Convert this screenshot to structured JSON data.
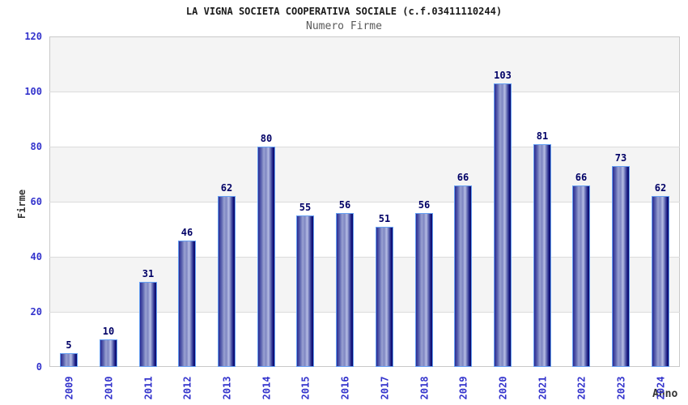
{
  "header": {
    "title": "LA VIGNA SOCIETA COOPERATIVA SOCIALE (c.f.03411110244)",
    "subtitle": "Numero Firme"
  },
  "chart_data": {
    "type": "bar",
    "title": "LA VIGNA SOCIETA COOPERATIVA SOCIALE (c.f.03411110244)",
    "subtitle": "Numero Firme",
    "xlabel": "Anno",
    "ylabel": "Firme",
    "categories": [
      "2009",
      "2010",
      "2011",
      "2012",
      "2013",
      "2014",
      "2015",
      "2016",
      "2017",
      "2018",
      "2019",
      "2020",
      "2021",
      "2022",
      "2023",
      "2024"
    ],
    "values": [
      5,
      10,
      31,
      46,
      62,
      80,
      55,
      56,
      51,
      56,
      66,
      103,
      81,
      66,
      73,
      62
    ],
    "ylim": [
      0,
      120
    ],
    "y_ticks": [
      0,
      20,
      40,
      60,
      80,
      100,
      120
    ],
    "grid": "horizontal-bands-alternating",
    "legend": "none",
    "bar_value_labels": true,
    "colors": {
      "tick_label": "#3333cc",
      "value_label": "#000066",
      "bar_dark": "#0c0c6a",
      "bar_light": "#b6bde4",
      "bar_border": "#66a0f2",
      "band_gray": "#f4f4f4",
      "band_white": "#ffffff",
      "plot_border": "#c9c9c9",
      "title_color": "#1a1a1a",
      "subtitle_color": "#5a5a5a"
    }
  }
}
